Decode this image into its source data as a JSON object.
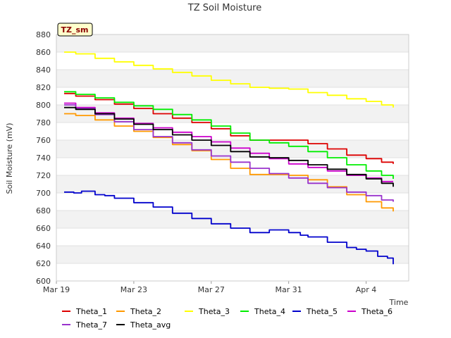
{
  "chart_data": {
    "type": "line",
    "title": "TZ Soil Moisture",
    "xlabel": "Time",
    "ylabel": "Soil Moisture (mV)",
    "badge": "TZ_sm",
    "ylim": [
      600,
      880
    ],
    "yticks": [
      600,
      620,
      640,
      660,
      680,
      700,
      720,
      740,
      760,
      780,
      800,
      820,
      840,
      860,
      880
    ],
    "xlim": [
      0,
      18.2
    ],
    "xticks": [
      {
        "value": 0,
        "label": "Mar 19"
      },
      {
        "value": 4,
        "label": "Mar 23"
      },
      {
        "value": 8,
        "label": "Mar 27"
      },
      {
        "value": 12,
        "label": "Mar 31"
      },
      {
        "value": 16,
        "label": "Apr 4"
      }
    ],
    "grid": true,
    "legend": "bottom",
    "series": [
      {
        "name": "Theta_1",
        "color": "#dd0000",
        "x": [
          0.4,
          1,
          2,
          3,
          4,
          5,
          6,
          7,
          8,
          9,
          10,
          11,
          12,
          13,
          14,
          15,
          16,
          16.8,
          17.4
        ],
        "y": [
          813,
          810,
          806,
          801,
          796,
          790,
          785,
          780,
          773,
          765,
          760,
          760,
          760,
          756,
          750,
          743,
          739,
          735,
          733
        ]
      },
      {
        "name": "Theta_2",
        "color": "#ff9900",
        "x": [
          0.4,
          1,
          2,
          3,
          4,
          5,
          6,
          7,
          8,
          9,
          10,
          11,
          12,
          13,
          14,
          15,
          16,
          16.8,
          17.4
        ],
        "y": [
          790,
          788,
          783,
          776,
          770,
          763,
          755,
          748,
          738,
          728,
          721,
          721,
          720,
          715,
          707,
          698,
          690,
          683,
          679
        ]
      },
      {
        "name": "Theta_3",
        "color": "#ffff00",
        "x": [
          0.4,
          1,
          2,
          3,
          4,
          5,
          6,
          7,
          8,
          9,
          10,
          11,
          12,
          13,
          14,
          15,
          16,
          16.8,
          17.4
        ],
        "y": [
          860,
          858,
          853,
          849,
          845,
          841,
          837,
          833,
          828,
          824,
          820,
          819,
          818,
          814,
          811,
          807,
          804,
          800,
          797
        ]
      },
      {
        "name": "Theta_4",
        "color": "#00ee00",
        "x": [
          0.4,
          1,
          2,
          3,
          4,
          5,
          6,
          7,
          8,
          9,
          10,
          11,
          12,
          13,
          14,
          15,
          16,
          16.8,
          17.4
        ],
        "y": [
          815,
          812,
          808,
          803,
          799,
          795,
          789,
          783,
          776,
          768,
          760,
          757,
          753,
          747,
          740,
          732,
          725,
          720,
          716
        ]
      },
      {
        "name": "Theta_5",
        "color": "#0000cc",
        "x": [
          0.4,
          0.9,
          1.3,
          2,
          2.5,
          3,
          4,
          5,
          6,
          7,
          8,
          9,
          10,
          10.6,
          11,
          12,
          12.6,
          13,
          14,
          15,
          15.5,
          16,
          16.6,
          17.1,
          17.4
        ],
        "y": [
          701,
          700,
          702,
          698,
          697,
          694,
          689,
          684,
          677,
          671,
          665,
          660,
          655,
          655,
          658,
          655,
          652,
          650,
          644,
          638,
          636,
          634,
          628,
          626,
          619
        ]
      },
      {
        "name": "Theta_6",
        "color": "#cc00cc",
        "x": [
          0.4,
          1,
          2,
          3,
          4,
          5,
          6,
          7,
          8,
          9,
          10,
          11,
          12,
          13,
          14,
          15,
          16,
          16.8,
          17.4
        ],
        "y": [
          802,
          797,
          791,
          785,
          779,
          774,
          769,
          764,
          758,
          751,
          745,
          739,
          733,
          729,
          725,
          720,
          717,
          713,
          713
        ]
      },
      {
        "name": "Theta_7",
        "color": "#9933cc",
        "x": [
          0.4,
          1,
          2,
          3,
          4,
          5,
          6,
          7,
          8,
          9,
          10,
          11,
          12,
          13,
          14,
          15,
          16,
          16.8,
          17.4
        ],
        "y": [
          800,
          796,
          789,
          781,
          772,
          764,
          757,
          749,
          742,
          735,
          728,
          722,
          717,
          711,
          706,
          701,
          697,
          692,
          690
        ]
      },
      {
        "name": "Theta_avg",
        "color": "#000000",
        "x": [
          0.4,
          1,
          2,
          3,
          4,
          5,
          6,
          7,
          8,
          9,
          10,
          11,
          12,
          13,
          14,
          15,
          16,
          16.8,
          17.4
        ],
        "y": [
          797,
          795,
          790,
          784,
          778,
          772,
          766,
          760,
          754,
          747,
          741,
          740,
          737,
          732,
          727,
          721,
          716,
          711,
          707
        ]
      }
    ]
  }
}
